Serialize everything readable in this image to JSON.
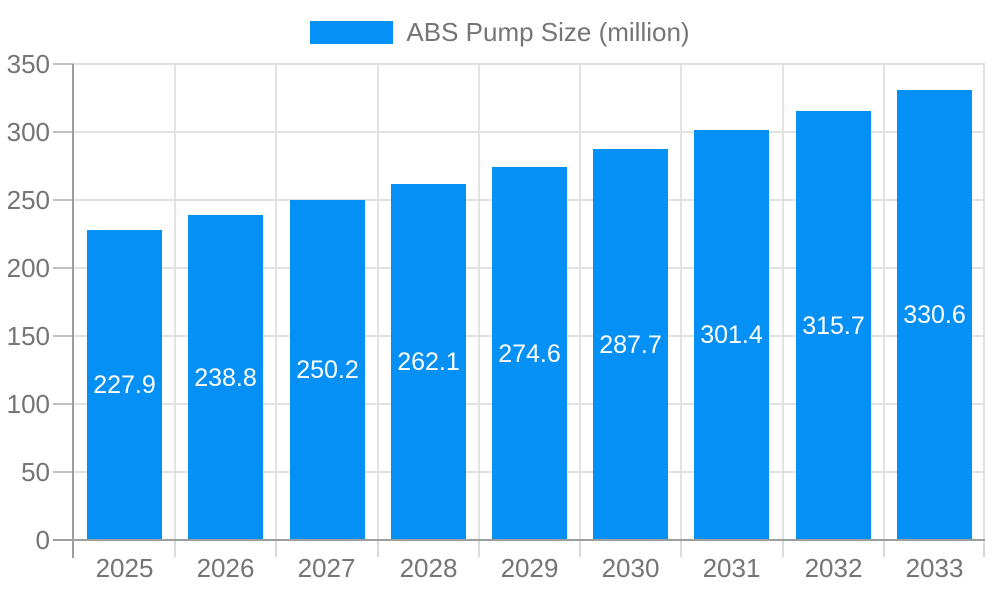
{
  "chart_data": {
    "type": "bar",
    "title": "",
    "xlabel": "",
    "ylabel": "",
    "categories": [
      "2025",
      "2026",
      "2027",
      "2028",
      "2029",
      "2030",
      "2031",
      "2032",
      "2033"
    ],
    "series": [
      {
        "name": "ABS Pump Size (million)",
        "values": [
          227.9,
          238.8,
          250.2,
          262.1,
          274.6,
          287.7,
          301.4,
          315.7,
          330.6
        ]
      }
    ],
    "ylim": [
      0,
      350
    ],
    "yticks": [
      0,
      50,
      100,
      150,
      200,
      250,
      300,
      350
    ],
    "grid": {
      "horizontal": true,
      "vertical": true
    },
    "legend_position": "top-center",
    "value_labels": {
      "position": "inside-middle",
      "decimals": 1
    }
  },
  "colors": {
    "bar": "#0590f6",
    "text": "#757575",
    "value_label": "#ffffff",
    "grid_line": "#e2e2e2",
    "axis_line": "#9e9e9e",
    "y_tick": "#c2c2c2",
    "x_tick": "#d9d9d9",
    "background": "#ffffff"
  }
}
